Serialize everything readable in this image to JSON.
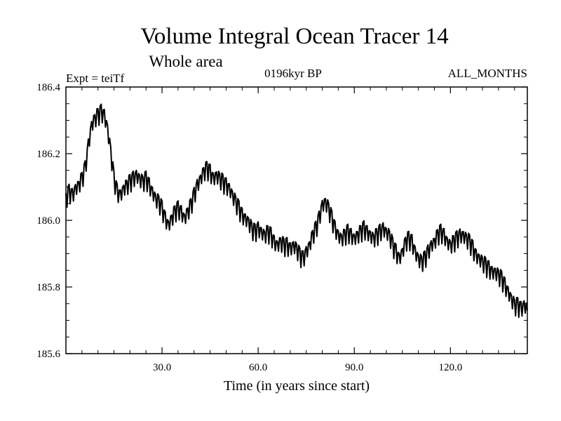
{
  "chart_data": {
    "type": "line",
    "title": "Volume Integral Ocean Tracer 14",
    "subtitle": "Whole area",
    "experiment_label": "Expt = teiTf",
    "period_label": "0196kyr BP",
    "months_label": "ALL_MONTHS",
    "xlabel": "Time (in years since start)",
    "ylabel": "",
    "xlim": [
      0,
      144
    ],
    "ylim": [
      185.6,
      186.4
    ],
    "x_ticks": [
      30,
      60,
      90,
      120
    ],
    "x_tick_labels": [
      "30.0",
      "60.0",
      "90.0",
      "120.0"
    ],
    "y_ticks": [
      185.6,
      185.8,
      186.0,
      186.2,
      186.4
    ],
    "y_tick_labels": [
      "185.6",
      "185.8",
      "186.0",
      "186.2",
      "186.4"
    ],
    "grid": false,
    "legend": "none",
    "line_color": "#000000",
    "series": [
      {
        "x": [
          0,
          1,
          2,
          3,
          4,
          5,
          6,
          7,
          8,
          9,
          10,
          11,
          12,
          13,
          14,
          15,
          16,
          17,
          18,
          19,
          20,
          21,
          22,
          23,
          24,
          25,
          26,
          27,
          28,
          29,
          30,
          31,
          32,
          33,
          34,
          35,
          36,
          37,
          38,
          39,
          40,
          41,
          42,
          43,
          44,
          45,
          46,
          47,
          48,
          49,
          50,
          51,
          52,
          53,
          54,
          55,
          56,
          57,
          58,
          59,
          60,
          61,
          62,
          63,
          64,
          65,
          66,
          67,
          68,
          69,
          70,
          71,
          72,
          73,
          74,
          75,
          76,
          77,
          78,
          79,
          80,
          81,
          82,
          83,
          84,
          85,
          86,
          87,
          88,
          89,
          90,
          91,
          92,
          93,
          94,
          95,
          96,
          97,
          98,
          99,
          100,
          101,
          102,
          103,
          104,
          105,
          106,
          107,
          108,
          109,
          110,
          111,
          112,
          113,
          114,
          115,
          116,
          117,
          118,
          119,
          120,
          121,
          122,
          123,
          124,
          125,
          126,
          127,
          128,
          129,
          130,
          131,
          132,
          133,
          134,
          135,
          136,
          137,
          138,
          139,
          140,
          141,
          142,
          143,
          144
        ],
        "values": [
          186.06,
          186.08,
          186.07,
          186.09,
          186.1,
          186.12,
          186.15,
          186.22,
          186.28,
          186.3,
          186.31,
          186.32,
          186.31,
          186.27,
          186.2,
          186.12,
          186.08,
          186.07,
          186.09,
          186.1,
          186.11,
          186.12,
          186.13,
          186.12,
          186.11,
          186.12,
          186.1,
          186.08,
          186.06,
          186.05,
          186.03,
          186.0,
          185.98,
          186.0,
          186.02,
          186.03,
          186.02,
          186.0,
          186.02,
          186.04,
          186.07,
          186.1,
          186.12,
          186.14,
          186.15,
          186.14,
          186.12,
          186.13,
          186.12,
          186.11,
          186.1,
          186.09,
          186.07,
          186.05,
          186.03,
          186.01,
          186.0,
          185.99,
          185.97,
          185.96,
          185.97,
          185.96,
          185.95,
          185.96,
          185.95,
          185.93,
          185.92,
          185.93,
          185.92,
          185.92,
          185.91,
          185.92,
          185.91,
          185.89,
          185.88,
          185.9,
          185.92,
          185.95,
          185.97,
          186.0,
          186.04,
          186.05,
          186.03,
          186.0,
          185.97,
          185.95,
          185.94,
          185.95,
          185.96,
          185.95,
          185.94,
          185.95,
          185.96,
          185.97,
          185.96,
          185.95,
          185.94,
          185.95,
          185.96,
          185.97,
          185.96,
          185.95,
          185.92,
          185.9,
          185.88,
          185.9,
          185.93,
          185.94,
          185.93,
          185.9,
          185.88,
          185.87,
          185.88,
          185.9,
          185.92,
          185.93,
          185.95,
          185.96,
          185.95,
          185.93,
          185.92,
          185.93,
          185.94,
          185.95,
          185.95,
          185.94,
          185.93,
          185.91,
          185.89,
          185.88,
          185.87,
          185.86,
          185.85,
          185.84,
          185.84,
          185.83,
          185.82,
          185.8,
          185.78,
          185.76,
          185.74,
          185.74,
          185.73,
          185.74,
          185.73
        ]
      }
    ]
  }
}
